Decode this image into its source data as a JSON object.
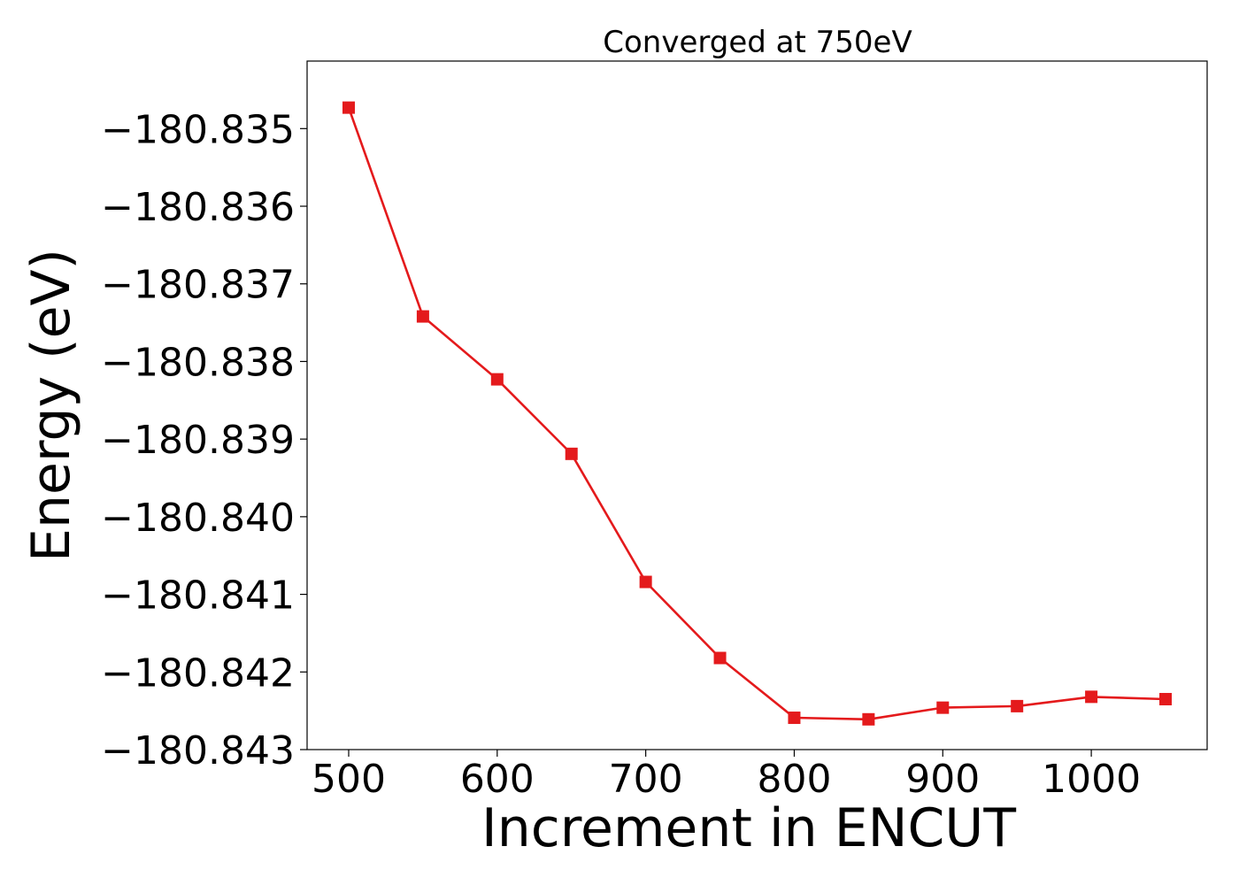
{
  "chart_data": {
    "type": "line",
    "title": "Converged at 750eV",
    "xlabel": "Increment in ENCUT",
    "ylabel": "Energy (eV)",
    "xlim": [
      472,
      1078
    ],
    "ylim": [
      -180.843,
      -180.83413
    ],
    "x_ticks": [
      500,
      600,
      700,
      800,
      900,
      1000
    ],
    "y_ticks": [
      -180.835,
      -180.836,
      -180.837,
      -180.838,
      -180.839,
      -180.84,
      -180.841,
      -180.842,
      -180.843
    ],
    "y_tick_labels": [
      "−180.835",
      "−180.836",
      "−180.837",
      "−180.838",
      "−180.839",
      "−180.840",
      "−180.841",
      "−180.842",
      "−180.843"
    ],
    "grid": false,
    "series": [
      {
        "color": "#e41a1c",
        "marker": "square",
        "x": [
          500,
          550,
          600,
          650,
          700,
          750,
          800,
          850,
          900,
          950,
          1000,
          1050
        ],
        "y": [
          -180.83473,
          -180.83742,
          -180.83823,
          -180.83919,
          -180.84084,
          -180.84182,
          -180.84259,
          -180.84261,
          -180.84246,
          -180.84244,
          -180.84232,
          -180.84235
        ]
      }
    ]
  }
}
